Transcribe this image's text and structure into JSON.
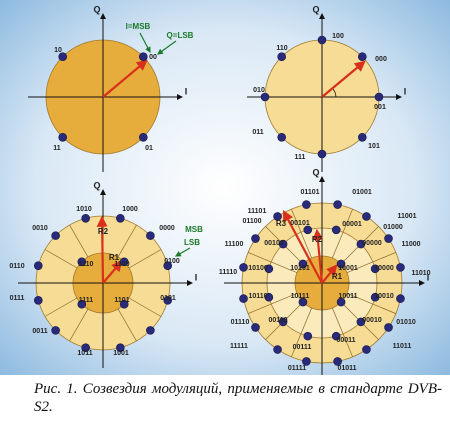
{
  "diagrams": [
    {
      "axis_labels": [
        "Q",
        "I"
      ],
      "annotations": [
        "I=MSB",
        "Q=LSB"
      ],
      "points": [
        "10",
        "00",
        "11",
        "01"
      ]
    },
    {
      "axis_labels": [
        "Q",
        "I"
      ],
      "annotations": [],
      "points": [
        "100",
        "110",
        "000",
        "010",
        "001",
        "011",
        "101",
        "111"
      ]
    },
    {
      "axis_labels": [
        "Q",
        "I"
      ],
      "annotations": [
        "R2",
        "R1",
        "MSB",
        "LSB"
      ],
      "points": [
        "1010",
        "1000",
        "0010",
        "0000",
        "0110",
        "0100",
        "0111",
        "0101",
        "0011",
        "1011",
        "1001",
        "1110",
        "1100",
        "1111",
        "1101"
      ]
    },
    {
      "axis_labels": [
        "Q",
        "I"
      ],
      "annotations": [
        "R3",
        "R2",
        "R1"
      ],
      "points": [
        "11101",
        "01101",
        "01001",
        "11001",
        "01100",
        "00101",
        "00001",
        "01000",
        "11100",
        "00100",
        "00000",
        "11000",
        "11110",
        "10100",
        "10101",
        "10001",
        "10000",
        "11010",
        "10110",
        "10111",
        "10011",
        "10010",
        "01110",
        "00110",
        "00010",
        "01010",
        "00111",
        "00011",
        "11111",
        "11011",
        "01111",
        "01011"
      ]
    }
  ],
  "caption": "Рис. 1. Созвездия модуляций, применяемые в стандарте DVB-S2."
}
